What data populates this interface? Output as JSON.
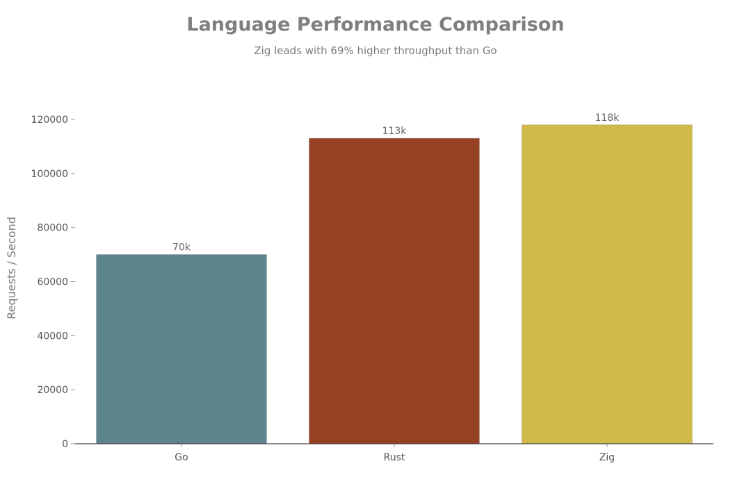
{
  "chart_data": {
    "type": "bar",
    "title": "Language Performance Comparison",
    "subtitle": "Zig leads with 69% higher throughput than Go",
    "xlabel": "",
    "ylabel": "Requests / Second",
    "categories": [
      "Go",
      "Rust",
      "Zig"
    ],
    "values": [
      70000,
      113000,
      118000
    ],
    "data_labels": [
      "70k",
      "113k",
      "118k"
    ],
    "colors": [
      "#5e858e",
      "#974124",
      "#d1b94a"
    ],
    "ylim": [
      0,
      120000
    ],
    "yticks": [
      0,
      20000,
      40000,
      60000,
      80000,
      100000,
      120000
    ],
    "ytick_labels": [
      "0",
      "20000",
      "40000",
      "60000",
      "80000",
      "100000",
      "120000"
    ],
    "grid": false,
    "legend": "none"
  }
}
